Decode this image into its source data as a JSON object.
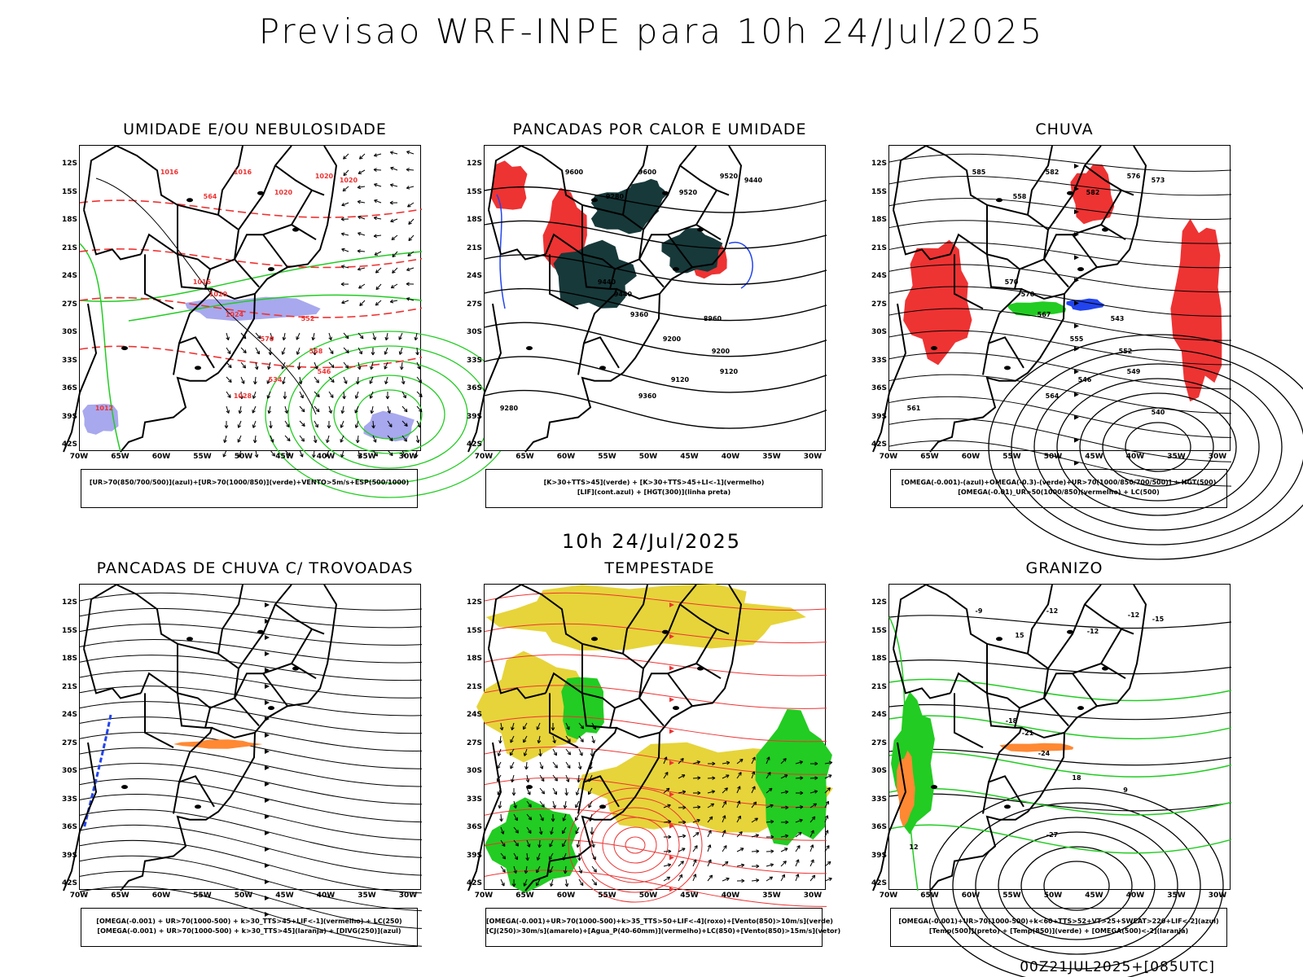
{
  "header": {
    "title": "Previsao WRF-INPE  para 10h 24/Jul/2025",
    "subtitle": "10h 24/Jul/2025",
    "run_stamp": "00Z21JUL2025+[085UTC]"
  },
  "axes": {
    "lat_labels": [
      "12S",
      "15S",
      "18S",
      "21S",
      "24S",
      "27S",
      "30S",
      "33S",
      "36S",
      "39S",
      "42S"
    ],
    "lon_labels": [
      "70W",
      "65W",
      "60W",
      "55W",
      "50W",
      "45W",
      "40W",
      "35W",
      "30W"
    ]
  },
  "colors": {
    "red": "#ee3333",
    "green": "#22cc22",
    "blue": "#2244ee",
    "lavender": "#a8a8ee",
    "darkteal": "#17393a",
    "yellow": "#e6d43a",
    "orange": "#ff8833",
    "black": "#000000"
  },
  "panels": [
    {
      "id": "umidade",
      "title": "UMIDADE E/OU NEBULOSIDADE",
      "legend": [
        "[UR>70(850/700/500)](azul)+[UR>70(1000/850)](verde)+VENTO>5m/s+ESP(500/1000)"
      ],
      "contour_labels": [
        "1016",
        "1016",
        "1020",
        "1020",
        "1020",
        "1016",
        "1020",
        "1024",
        "1028",
        "1012",
        "564",
        "570",
        "558",
        "546",
        "534",
        "552"
      ]
    },
    {
      "id": "pancadas_calor",
      "title": "PANCADAS POR CALOR E UMIDADE",
      "legend": [
        "[K>30+TTS>45](verde) + [K>30+TTS>45+LI<-1](vermelho)",
        "[LIF](cont.azul) + [HGT(300)](linha preta)"
      ],
      "contour_labels": [
        "9600",
        "9600",
        "9520",
        "9520",
        "9440",
        "9440",
        "9440",
        "9360",
        "9360",
        "9280",
        "9280",
        "9200",
        "9200",
        "9120",
        "9120",
        "8960"
      ]
    },
    {
      "id": "chuva",
      "title": "CHUVA",
      "legend": [
        "[OMEGA(-0.001)-(azul)+OMEGA(-0.3)-(verde)+UR>70(1000/850/700/500)] + HGT(500)",
        "[OMEGA(-0.01)_UR>50(1000/850)(vermelho) + LC(500)"
      ],
      "contour_labels": [
        "585",
        "582",
        "582",
        "576",
        "573",
        "570",
        "570",
        "567",
        "564",
        "561",
        "558",
        "555",
        "552",
        "549",
        "546",
        "543",
        "540"
      ]
    },
    {
      "id": "pancadas_trovoadas",
      "title": "PANCADAS DE CHUVA C/ TROVOADAS",
      "legend": [
        "[OMEGA(-0.001) + UR>70(1000-500) + k>30_TTS>45+LIF<-1](vermelho) + LC(250)",
        "[OMEGA(-0.001) + UR>70(1000-500) + k>30_TTS>45](laranja) + [DIVG(250)](azul)"
      ],
      "contour_labels": []
    },
    {
      "id": "tempestade",
      "title": "TEMPESTADE",
      "legend": [
        "[OMEGA(-0.001)+UR>70(1000-500)+k>35_TTS>50+LIF<-4](roxo)+[Vento(850)>10m/s](verde)",
        "[CJ(250)>30m/s](amarelo)+[Agua_P(40-60mm)](vermelho)+LC(850)+[Vento(850)>15m/s](vetor)"
      ],
      "contour_labels": []
    },
    {
      "id": "granizo",
      "title": "GRANIZO",
      "legend": [
        "[OMEGA(-0.001)+UR>70(1000-500)+k<60+TTS>52+VT>25+SWEAT>220+LIF<-2](azul)",
        "[Temp(500)](preto) + [Temp(850)](verde) + [OMEGA(500)<-2](laranja)"
      ],
      "contour_labels": [
        "-9",
        "-12",
        "-12",
        "-12",
        "-15",
        "-18",
        "-21",
        "-24",
        "-27",
        "12",
        "15",
        "18",
        "9"
      ]
    }
  ]
}
